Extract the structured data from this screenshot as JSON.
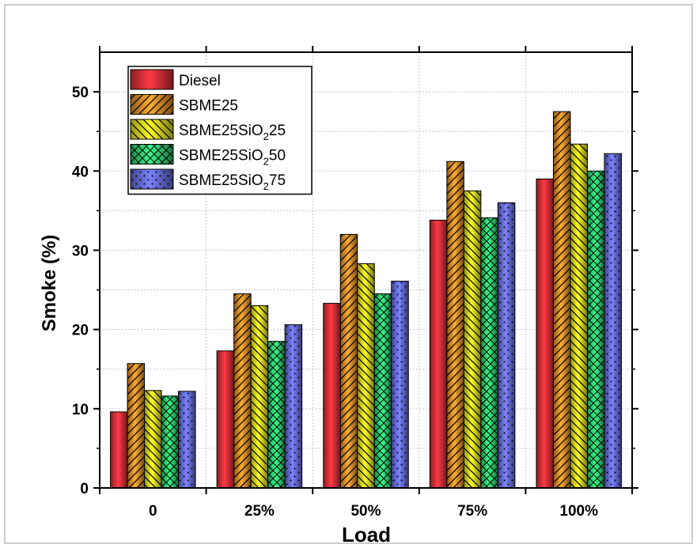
{
  "chart_data": {
    "type": "bar",
    "title": "",
    "xlabel": "Load",
    "ylabel": "Smoke (%)",
    "categories": [
      "0",
      "25%",
      "50%",
      "75%",
      "100%"
    ],
    "ylim": [
      0,
      55
    ],
    "yticks": [
      0,
      10,
      20,
      30,
      40,
      50
    ],
    "grid": true,
    "legend_position": "top-left",
    "series": [
      {
        "name": "Diesel",
        "name_base": "Diesel",
        "name_sub": "",
        "name_suffix": "",
        "color": "#e8323a",
        "pattern": "solid",
        "values": [
          9.6,
          17.3,
          23.3,
          33.8,
          39.0
        ]
      },
      {
        "name": "SBME25",
        "name_base": "SBME25",
        "name_sub": "",
        "name_suffix": "",
        "color": "#f2962a",
        "pattern": "diagonal",
        "values": [
          15.7,
          24.5,
          32.0,
          41.2,
          47.5
        ]
      },
      {
        "name": "SBME25SiO25",
        "name_base": "SBME25SiO",
        "name_sub": "2",
        "name_suffix": "25",
        "color": "#f4f21c",
        "pattern": "back-diagonal",
        "values": [
          12.3,
          23.0,
          28.3,
          37.5,
          43.4
        ]
      },
      {
        "name": "SBME25SiO50",
        "name_base": "SBME25SiO",
        "name_sub": "2",
        "name_suffix": "50",
        "color": "#2ee07a",
        "pattern": "crosshatch",
        "values": [
          11.6,
          18.5,
          24.5,
          34.1,
          40.0
        ]
      },
      {
        "name": "SBME25SiO75",
        "name_base": "SBME25SiO",
        "name_sub": "2",
        "name_suffix": "75",
        "color": "#6b72e8",
        "pattern": "dots",
        "values": [
          12.2,
          20.6,
          26.1,
          36.0,
          42.2
        ]
      }
    ]
  }
}
